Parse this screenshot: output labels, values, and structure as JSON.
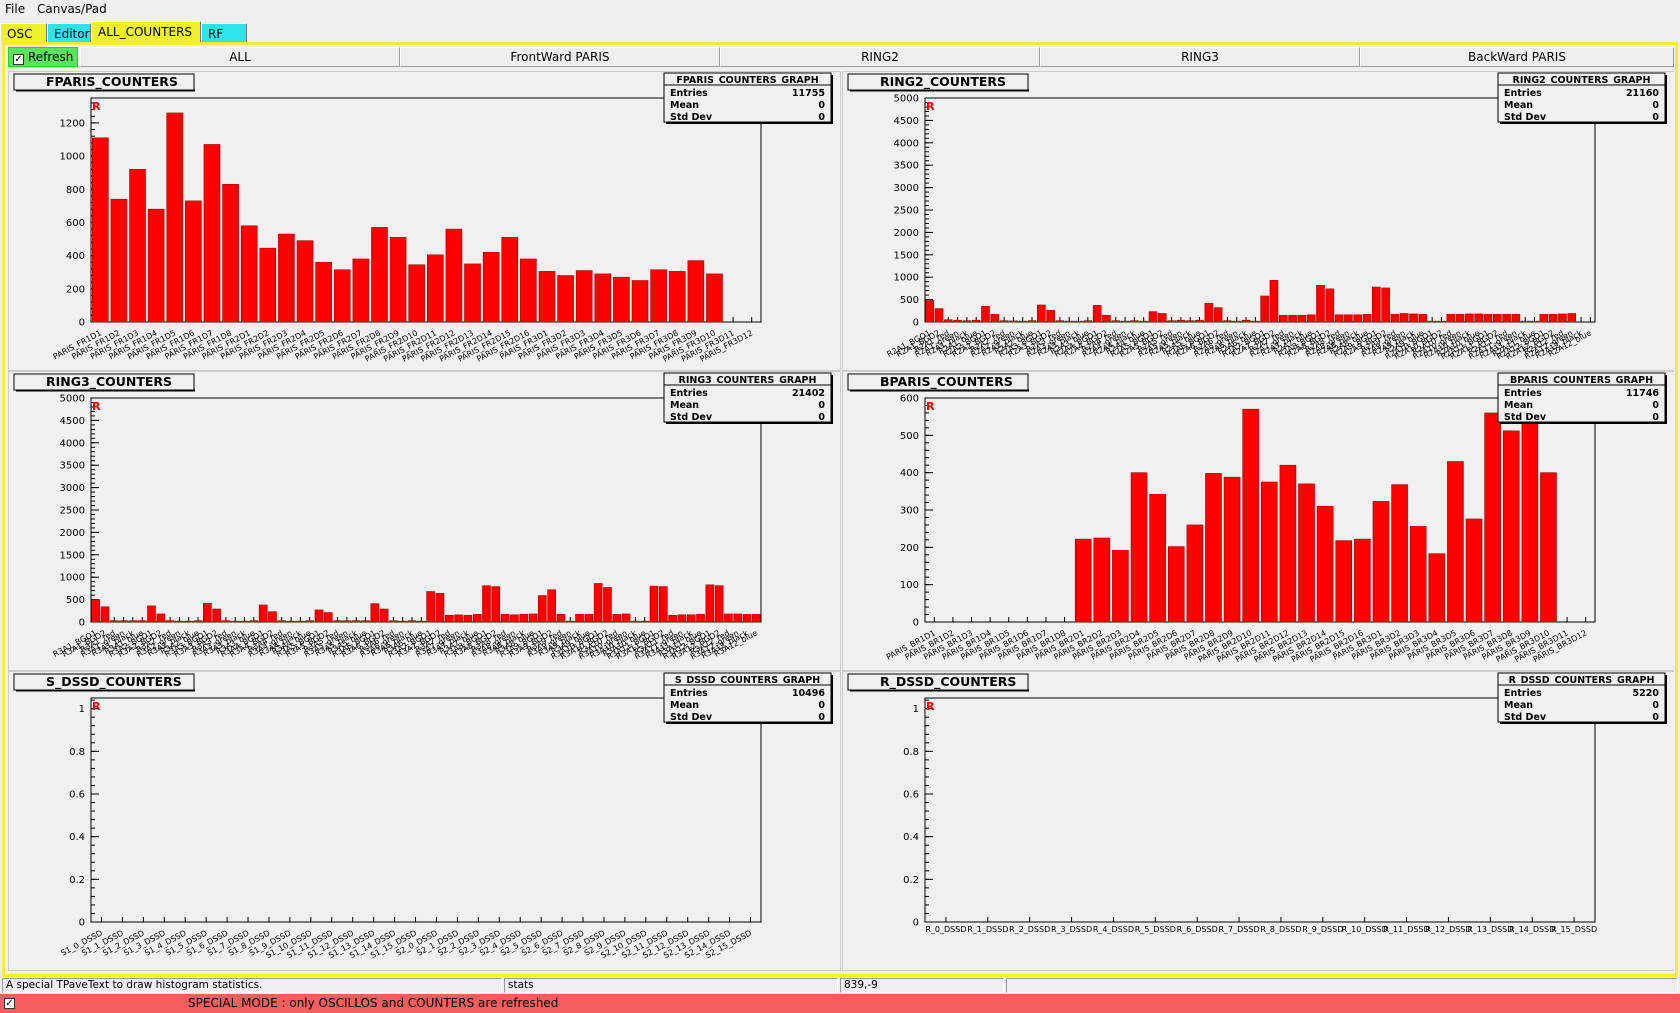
{
  "menubar": {
    "file": "File",
    "canvas_pad": "Canvas/Pad"
  },
  "main_tabs": [
    {
      "label": "OSC",
      "color": "#f0f02a"
    },
    {
      "label": "Editor",
      "color": "#2de3ec"
    },
    {
      "label": "ALL_COUNTERS",
      "color": "#f0f02a"
    },
    {
      "label": "RF",
      "color": "#2de3ec"
    }
  ],
  "refresh": {
    "label": "Refresh",
    "checked": true
  },
  "sub_tabs": [
    "ALL",
    "FrontWard PARIS",
    "RING2",
    "RING3",
    "BackWard PARIS"
  ],
  "status": {
    "message": "A special TPaveText to draw histogram statistics.",
    "object": "stats",
    "coords": "839,-9"
  },
  "special_mode": "SPECIAL MODE : only OSCILLOS and COUNTERS are refreshed",
  "colors": {
    "bar": "#ff0000",
    "frame_border": "#f3ec3a",
    "tab_yellow": "#f0f02a",
    "tab_cyan": "#2de3ec",
    "refresh_green": "#5be35b",
    "special_red": "#f25d5d"
  },
  "chart_data": [
    {
      "type": "bar",
      "title": "FPARIS_COUNTERS",
      "stats_title": "FPARIS_COUNTERS_GRAPH",
      "entries": "11755",
      "mean": "0",
      "std_dev": "0",
      "ylim": [
        0,
        1350
      ],
      "yticks": [
        0,
        200,
        400,
        600,
        800,
        1000,
        1200
      ],
      "categories": [
        "PARIS_FR1D1",
        "PARIS_FR1D2",
        "PARIS_FR1D3",
        "PARIS_FR1D4",
        "PARIS_FR1D5",
        "PARIS_FR1D6",
        "PARIS_FR1D7",
        "PARIS_FR1D8",
        "PARIS_FR2D1",
        "PARIS_FR2D2",
        "PARIS_FR2D3",
        "PARIS_FR2D4",
        "PARIS_FR2D5",
        "PARIS_FR2D6",
        "PARIS_FR2D7",
        "PARIS_FR2D8",
        "PARIS_FR2D9",
        "PARIS_FR2D10",
        "PARIS_FR2D11",
        "PARIS_FR2D12",
        "PARIS_FR2D13",
        "PARIS_FR2D14",
        "PARIS_FR2D15",
        "PARIS_FR2D16",
        "PARIS_FR3D1",
        "PARIS_FR3D2",
        "PARIS_FR3D3",
        "PARIS_FR3D4",
        "PARIS_FR3D5",
        "PARIS_FR3D6",
        "PARIS_FR3D7",
        "PARIS_FR3D8",
        "PARIS_FR3D9",
        "PARIS_FR3D10",
        "PARIS_FR3D11",
        "PARIS_FR3D12"
      ],
      "values": [
        1110,
        740,
        920,
        680,
        1260,
        730,
        1070,
        830,
        580,
        445,
        530,
        490,
        360,
        315,
        380,
        570,
        510,
        345,
        405,
        560,
        350,
        420,
        510,
        380,
        305,
        280,
        310,
        290,
        270,
        250,
        315,
        305,
        370,
        290,
        0,
        0
      ]
    },
    {
      "type": "bar",
      "title": "RING2_COUNTERS",
      "stats_title": "RING2_COUNTERS_GRAPH",
      "entries": "21160",
      "mean": "0",
      "std_dev": "0",
      "ylim": [
        0,
        5000
      ],
      "yticks": [
        0,
        500,
        1000,
        1500,
        2000,
        2500,
        3000,
        3500,
        4000,
        4500,
        5000
      ],
      "categories": [
        "R2A1_BGO1",
        "R2A1_BGO2",
        "R2A1_red",
        "R2A1_green",
        "R2A1_black",
        "R2A1_blue",
        "R2A2_BGO1",
        "R2A2_BGO2",
        "R2A2_red",
        "R2A2_green",
        "R2A2_black",
        "R2A2_blue",
        "R2A3_BGO1",
        "R2A3_BGO2",
        "R2A3_red",
        "R2A3_green",
        "R2A3_black",
        "R2A3_blue",
        "R2A4_BGO1",
        "R2A4_BGO2",
        "R2A4_red",
        "R2A4_green",
        "R2A4_black",
        "R2A4_blue",
        "R2A5_BGO1",
        "R2A5_BGO2",
        "R2A5_red",
        "R2A5_green",
        "R2A5_black",
        "R2A5_blue",
        "R2A6_BGO1",
        "R2A6_BGO2",
        "R2A6_red",
        "R2A6_green",
        "R2A6_black",
        "R2A6_blue",
        "R2A7_BGO1",
        "R2A7_BGO2",
        "R2A7_red",
        "R2A7_green",
        "R2A7_black",
        "R2A7_blue",
        "R2A8_BGO1",
        "R2A8_BGO2",
        "R2A8_red",
        "R2A8_green",
        "R2A8_black",
        "R2A8_blue",
        "R2A9_BGO1",
        "R2A9_BGO2",
        "R2A9_red",
        "R2A9_green",
        "R2A9_black",
        "R2A9_blue",
        "R2A10_BGO1",
        "R2A10_BGO2",
        "R2A10_red",
        "R2A10_green",
        "R2A10_black",
        "R2A10_blue",
        "R2A11_BGO1",
        "R2A11_BGO2",
        "R2A11_red",
        "R2A11_green",
        "R2A11_black",
        "R2A11_blue",
        "R2A12_BGO1",
        "R2A12_BGO2",
        "R2A12_red",
        "R2A12_green",
        "R2A12_black",
        "R2A12_blue"
      ],
      "values": [
        480,
        300,
        50,
        40,
        30,
        40,
        350,
        170,
        30,
        25,
        20,
        30,
        380,
        260,
        30,
        20,
        20,
        30,
        370,
        150,
        30,
        20,
        30,
        20,
        230,
        190,
        30,
        40,
        30,
        40,
        420,
        320,
        30,
        20,
        40,
        20,
        580,
        930,
        150,
        150,
        150,
        160,
        820,
        740,
        160,
        160,
        160,
        170,
        780,
        760,
        170,
        190,
        180,
        170,
        20,
        20,
        170,
        170,
        180,
        180,
        170,
        170,
        170,
        170,
        20,
        20,
        170,
        170,
        180,
        190,
        0,
        0
      ]
    },
    {
      "type": "bar",
      "title": "RING3_COUNTERS",
      "stats_title": "RING3_COUNTERS_GRAPH",
      "entries": "21402",
      "mean": "0",
      "std_dev": "0",
      "ylim": [
        0,
        5000
      ],
      "yticks": [
        0,
        500,
        1000,
        1500,
        2000,
        2500,
        3000,
        3500,
        4000,
        4500,
        5000
      ],
      "categories": [
        "R3A1_BGO1",
        "R3A1_BGO2",
        "R3A1_red",
        "R3A1_green",
        "R3A1_black",
        "R3A1_blue",
        "R3A2_BGO1",
        "R3A2_BGO2",
        "R3A2_red",
        "R3A2_green",
        "R3A2_black",
        "R3A2_blue",
        "R3A3_BGO1",
        "R3A3_BGO2",
        "R3A3_red",
        "R3A3_green",
        "R3A3_black",
        "R3A3_blue",
        "R3A4_BGO1",
        "R3A4_BGO2",
        "R3A4_red",
        "R3A4_green",
        "R3A4_black",
        "R3A4_blue",
        "R3A5_BGO1",
        "R3A5_BGO2",
        "R3A5_red",
        "R3A5_green",
        "R3A5_black",
        "R3A5_blue",
        "R3A6_BGO1",
        "R3A6_BGO2",
        "R3A6_red",
        "R3A6_green",
        "R3A6_black",
        "R3A6_blue",
        "R3A7_BGO1",
        "R3A7_BGO2",
        "R3A7_red",
        "R3A7_green",
        "R3A7_black",
        "R3A7_blue",
        "R3A8_BGO1",
        "R3A8_BGO2",
        "R3A8_red",
        "R3A8_green",
        "R3A8_black",
        "R3A8_blue",
        "R3A9_BGO1",
        "R3A9_BGO2",
        "R3A9_red",
        "R3A9_green",
        "R3A9_black",
        "R3A9_blue",
        "R3A10_BGO1",
        "R3A10_BGO2",
        "R3A10_red",
        "R3A10_green",
        "R3A10_black",
        "R3A10_blue",
        "R3A11_BGO1",
        "R3A11_BGO2",
        "R3A11_red",
        "R3A11_green",
        "R3A11_black",
        "R3A11_blue",
        "R3A12_BGO1",
        "R3A12_BGO2",
        "R3A12_red",
        "R3A12_green",
        "R3A12_black",
        "R3A12_blue"
      ],
      "values": [
        500,
        340,
        30,
        30,
        30,
        30,
        360,
        180,
        30,
        20,
        20,
        30,
        420,
        290,
        30,
        20,
        20,
        30,
        380,
        230,
        30,
        20,
        20,
        30,
        270,
        210,
        30,
        30,
        30,
        30,
        410,
        290,
        30,
        20,
        30,
        20,
        680,
        640,
        150,
        160,
        150,
        170,
        810,
        790,
        170,
        160,
        170,
        180,
        590,
        720,
        170,
        20,
        170,
        170,
        860,
        770,
        170,
        180,
        20,
        20,
        800,
        790,
        150,
        160,
        160,
        170,
        830,
        810,
        180,
        180,
        170,
        170
      ]
    },
    {
      "type": "bar",
      "title": "BPARIS_COUNTERS",
      "stats_title": "BPARIS_COUNTERS_GRAPH",
      "entries": "11746",
      "mean": "0",
      "std_dev": "0",
      "ylim": [
        0,
        600
      ],
      "yticks": [
        0,
        100,
        200,
        300,
        400,
        500,
        600
      ],
      "categories": [
        "PARIS_BR1D1",
        "PARIS_BR1D2",
        "PARIS_BR1D3",
        "PARIS_BR1D4",
        "PARIS_BR1D5",
        "PARIS_BR1D6",
        "PARIS_BR1D7",
        "PARIS_BR1D8",
        "PARIS_BR2D1",
        "PARIS_BR2D2",
        "PARIS_BR2D3",
        "PARIS_BR2D4",
        "PARIS_BR2D5",
        "PARIS_BR2D6",
        "PARIS_BR2D7",
        "PARIS_BR2D8",
        "PARIS_BR2D9",
        "PARIS_BR2D10",
        "PARIS_BR2D11",
        "PARIS_BR2D12",
        "PARIS_BR2D13",
        "PARIS_BR2D14",
        "PARIS_BR2D15",
        "PARIS_BR2D16",
        "PARIS_BR3D1",
        "PARIS_BR3D2",
        "PARIS_BR3D3",
        "PARIS_BR3D4",
        "PARIS_BR3D5",
        "PARIS_BR3D6",
        "PARIS_BR3D7",
        "PARIS_BR3D8",
        "PARIS_BR3D9",
        "PARIS_BR3D10",
        "PARIS_BR3D11",
        "PARIS_BR3D12"
      ],
      "values": [
        0,
        0,
        0,
        0,
        0,
        0,
        0,
        0,
        222,
        225,
        192,
        400,
        342,
        202,
        260,
        398,
        388,
        570,
        375,
        420,
        370,
        310,
        218,
        222,
        323,
        368,
        256,
        183,
        430,
        276,
        560,
        512,
        540,
        400,
        0,
        0
      ]
    },
    {
      "type": "bar",
      "title": "S_DSSD_COUNTERS",
      "stats_title": "S_DSSD_COUNTERS_GRAPH",
      "entries": "10496",
      "mean": "0",
      "std_dev": "0",
      "ylim": [
        0,
        1.05
      ],
      "yticks": [
        0,
        0.2,
        0.4,
        0.6,
        0.8,
        1
      ],
      "categories": [
        "S1_0_DSSD",
        "S1_1_DSSD",
        "S1_2_DSSD",
        "S1_3_DSSD",
        "S1_4_DSSD",
        "S1_5_DSSD",
        "S1_6_DSSD",
        "S1_7_DSSD",
        "S1_8_DSSD",
        "S1_9_DSSD",
        "S1_10_DSSD",
        "S1_11_DSSD",
        "S1_12_DSSD",
        "S1_13_DSSD",
        "S1_14_DSSD",
        "S1_15_DSSD",
        "S2_0_DSSD",
        "S2_1_DSSD",
        "S2_2_DSSD",
        "S2_3_DSSD",
        "S2_4_DSSD",
        "S2_5_DSSD",
        "S2_6_DSSD",
        "S2_7_DSSD",
        "S2_8_DSSD",
        "S2_9_DSSD",
        "S2_10_DSSD",
        "S2_11_DSSD",
        "S2_12_DSSD",
        "S2_13_DSSD",
        "S2_14_DSSD",
        "S2_15_DSSD"
      ],
      "values": [
        0,
        0,
        0,
        0,
        0,
        0,
        0,
        0,
        0,
        0,
        0,
        0,
        0,
        0,
        0,
        0,
        0,
        0,
        0,
        0,
        0,
        0,
        0,
        0,
        0,
        0,
        0,
        0,
        0,
        0,
        0,
        0
      ]
    },
    {
      "type": "bar",
      "title": "R_DSSD_COUNTERS",
      "stats_title": "R_DSSD_COUNTERS_GRAPH",
      "entries": "5220",
      "mean": "0",
      "std_dev": "0",
      "ylim": [
        0,
        1.05
      ],
      "yticks": [
        0,
        0.2,
        0.4,
        0.6,
        0.8,
        1
      ],
      "categories": [
        "R_0_DSSD",
        "R_1_DSSD",
        "R_2_DSSD",
        "R_3_DSSD",
        "R_4_DSSD",
        "R_5_DSSD",
        "R_6_DSSD",
        "R_7_DSSD",
        "R_8_DSSD",
        "R_9_DSSD",
        "R_10_DSSD",
        "R_11_DSSD",
        "R_12_DSSD",
        "R_13_DSSD",
        "R_14_DSSD",
        "R_15_DSSD"
      ],
      "values": [
        0,
        0,
        0,
        0,
        0,
        0,
        0,
        0,
        0,
        0,
        0,
        0,
        0,
        0,
        0,
        0
      ]
    }
  ]
}
